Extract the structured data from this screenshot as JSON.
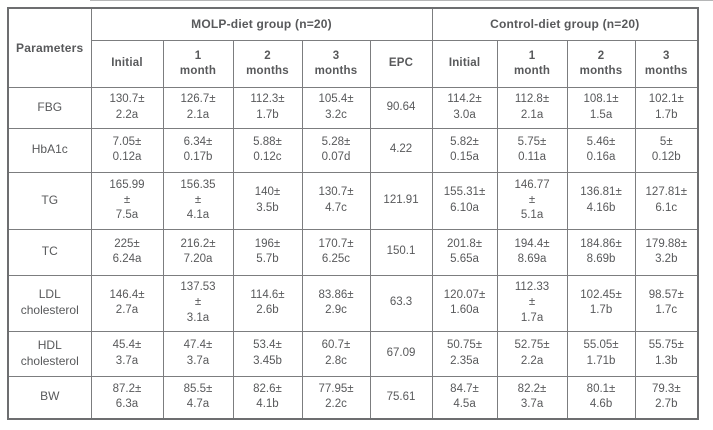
{
  "colors": {
    "border_outer": "#6d6e70",
    "border_inner": "#7c7d7f",
    "text": "#58595b",
    "background": "#ffffff"
  },
  "table": {
    "corner_label": "Parameters",
    "groups": [
      {
        "label": "MOLP-diet group (n=20)",
        "colspan": 5
      },
      {
        "label": "Control-diet group (n=20)",
        "colspan": 4
      }
    ],
    "subheaders": [
      "Initial",
      "1\nmonth",
      "2\nmonths",
      "3\nmonths",
      "EPC",
      "Initial",
      "1\nmonth",
      "2\nmonths",
      "3\nmonths"
    ],
    "rows": [
      {
        "parameter": "FBG",
        "cells": [
          "130.7±\n2.2a",
          "126.7±\n2.1a",
          "112.3±\n1.7b",
          "105.4±\n3.2c",
          "90.64",
          "114.2±\n3.0a",
          "112.8±\n2.1a",
          "108.1±\n1.5a",
          "102.1±\n1.7b"
        ]
      },
      {
        "parameter": "HbA1c",
        "cells": [
          "7.05±\n0.12a",
          "6.34±\n0.17b",
          "5.88±\n0.12c",
          "5.28±\n0.07d",
          "4.22",
          "5.82±\n0.15a",
          "5.75±\n0.11a",
          "5.46±\n0.16a",
          "5±\n0.12b"
        ]
      },
      {
        "parameter": "TG",
        "cells": [
          "165.99\n±\n7.5a",
          "156.35\n±\n4.1a",
          "140±\n3.5b",
          "130.7±\n4.7c",
          "121.91",
          "155.31±\n6.10a",
          "146.77\n±\n5.1a",
          "136.81±\n4.16b",
          "127.81±\n6.1c"
        ]
      },
      {
        "parameter": "TC",
        "cells": [
          "225±\n6.24a",
          "216.2±\n7.20a",
          "196±\n5.7b",
          "170.7±\n6.25c",
          "150.1",
          "201.8±\n5.65a",
          "194.4±\n8.69a",
          "184.86±\n8.69b",
          "179.88±\n3.2b"
        ]
      },
      {
        "parameter": "LDL\ncholesterol",
        "cells": [
          "146.4±\n2.7a",
          "137.53\n±\n3.1a",
          "114.6±\n2.6b",
          "83.86±\n2.9c",
          "63.3",
          "120.07±\n1.60a",
          "112.33\n±\n1.7a",
          "102.45±\n1.7b",
          "98.57±\n1.7c"
        ]
      },
      {
        "parameter": "HDL\ncholesterol",
        "cells": [
          "45.4±\n3.7a",
          "47.4±\n3.7a",
          "53.4±\n3.45b",
          "60.7±\n2.8c",
          "67.09",
          "50.75±\n2.35a",
          "52.75±\n2.2a",
          "55.05±\n1.71b",
          "55.75±\n1.3b"
        ]
      },
      {
        "parameter": "BW",
        "cells": [
          "87.2±\n6.3a",
          "85.5±\n4.7a",
          "82.6±\n4.1b",
          "77.95±\n2.2c",
          "75.61",
          "84.7±\n4.5a",
          "82.2±\n3.7a",
          "80.1±\n4.6b",
          "79.3±\n2.7b"
        ]
      }
    ]
  }
}
